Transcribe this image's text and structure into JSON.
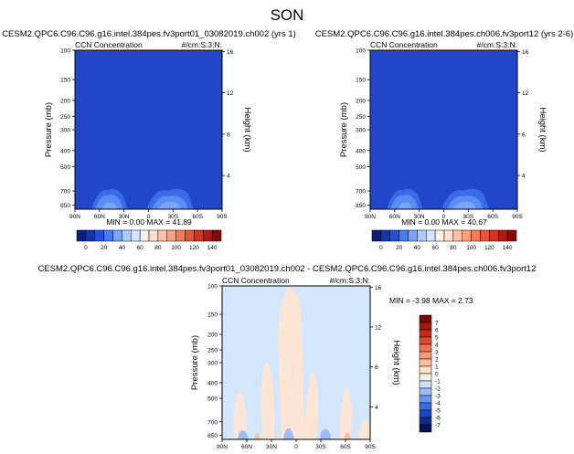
{
  "figure": {
    "title": "SON"
  },
  "panels": [
    {
      "name": "panel-top-left",
      "case_title": "CESM2.QPC6.C96.C96.g16.intel.384pes.fv3port01_03082019.ch002 (yrs 1)",
      "left_label": "CCN Concentration",
      "right_label": "#/cm:S:3:N:",
      "stats": "MIN =  0.00   MAX =  41.89"
    },
    {
      "name": "panel-top-right",
      "case_title": "CESM2.QPC6.C96.C96.g16.intel.384pes.ch006.fv3port12 (yrs 2-6)",
      "left_label": "CCN Concentration",
      "right_label": "#/cm:S:3:N:",
      "stats": "MIN =  0.00   MAX =  40.67"
    },
    {
      "name": "panel-difference",
      "case_title": "CESM2.QPC6.C96.C96.g16.intel.384pes.fv3port01_03082019.ch002 - CESM2.QPC6.C96.C96.g16.intel.384pes.ch006.fv3port12",
      "left_label": "CCN Concentration",
      "right_label": "#/cm:S:3:N:",
      "stats": "MIN = -3.98   MAX =  2.73"
    }
  ],
  "chart_data": [
    {
      "type": "heatmap",
      "title": "CESM2.QPC6.C96.C96.g16.intel.384pes.fv3port01_03082019.ch002 (yrs 1)",
      "xlabel": "",
      "ylabel": "Pressure (mb)",
      "y2label": "Height (km)",
      "x_ticks": [
        "90N",
        "60N",
        "30N",
        "0",
        "30S",
        "60S",
        "90S"
      ],
      "y_ticks": [
        "100",
        "150",
        "200",
        "250",
        "300",
        "400",
        "500",
        "700",
        "850"
      ],
      "y2_ticks": [
        "16",
        "12",
        "8",
        "4"
      ],
      "colorbar_levels": [
        "0",
        "20",
        "40",
        "60",
        "80",
        "100",
        "120",
        "140"
      ],
      "min": 0.0,
      "max": 41.89,
      "colorbar_orientation": "horizontal"
    },
    {
      "type": "heatmap",
      "title": "CESM2.QPC6.C96.C96.g16.intel.384pes.ch006.fv3port12 (yrs 2-6)",
      "xlabel": "",
      "ylabel": "Pressure (mb)",
      "y2label": "Height (km)",
      "x_ticks": [
        "90N",
        "60N",
        "30N",
        "0",
        "30S",
        "60S",
        "90S"
      ],
      "y_ticks": [
        "100",
        "150",
        "200",
        "250",
        "300",
        "400",
        "500",
        "700",
        "850"
      ],
      "y2_ticks": [
        "16",
        "12",
        "8",
        "4"
      ],
      "colorbar_levels": [
        "0",
        "20",
        "40",
        "60",
        "80",
        "100",
        "120",
        "140"
      ],
      "min": 0.0,
      "max": 40.67,
      "colorbar_orientation": "horizontal"
    },
    {
      "type": "heatmap",
      "title": "CESM2.QPC6.C96.C96.g16.intel.384pes.fv3port01_03082019.ch002 - CESM2.QPC6.C96.C96.g16.intel.384pes.ch006.fv3port12",
      "xlabel": "",
      "ylabel": "Pressure (mb)",
      "y2label": "Height (km)",
      "x_ticks": [
        "90N",
        "60N",
        "30N",
        "0",
        "30S",
        "60S",
        "90S"
      ],
      "y_ticks": [
        "100",
        "150",
        "200",
        "250",
        "300",
        "400",
        "500",
        "700",
        "850"
      ],
      "y2_ticks": [
        "16",
        "12",
        "8",
        "4"
      ],
      "colorbar_levels": [
        "7",
        "6",
        "5",
        "4",
        "3",
        "2",
        "1",
        "0",
        "-1",
        "-2",
        "-3",
        "-4",
        "-5",
        "-6",
        "-7"
      ],
      "min": -3.98,
      "max": 2.73,
      "colorbar_orientation": "vertical"
    }
  ],
  "colors": {
    "abs_scale": [
      "#0a1e78",
      "#1636a8",
      "#2450d8",
      "#4a7bf0",
      "#7ba4f8",
      "#aecbff",
      "#d4e6ff",
      "#f7f2ea",
      "#fde0cf",
      "#fbc2a7",
      "#f7a07e",
      "#f27d58",
      "#e65538",
      "#d2321f",
      "#b01a12",
      "#850a0a"
    ],
    "diff_scale": [
      "#08134f",
      "#102c8c",
      "#1b46c2",
      "#3a6ae6",
      "#6a94f4",
      "#9ebcfb",
      "#cfe1fe",
      "#f5f0e8",
      "#fde0c8",
      "#fbc0a0",
      "#f69a76",
      "#ef734e",
      "#e0482d",
      "#c92817",
      "#a4150c",
      "#7e0606"
    ],
    "field_abs": "#2146c9",
    "field_diff": "#d4e6fb"
  }
}
